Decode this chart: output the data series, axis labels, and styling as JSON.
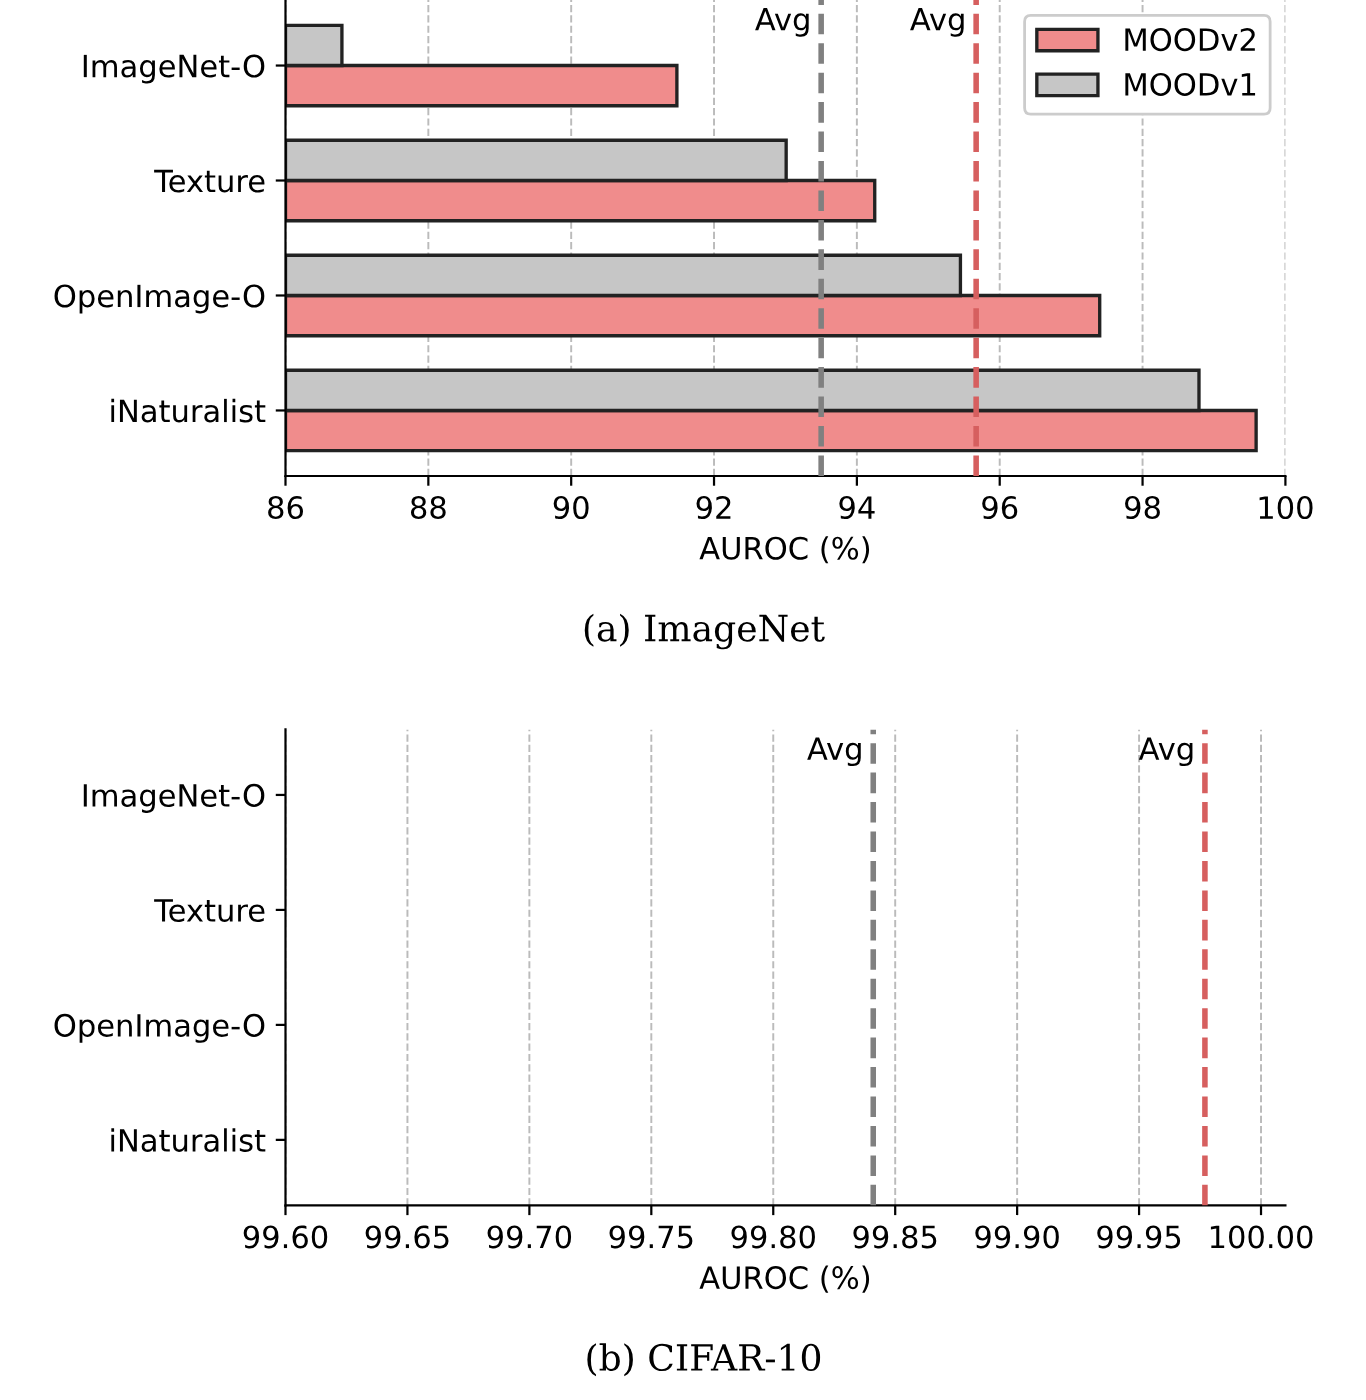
{
  "chart_data": [
    {
      "type": "bar",
      "orientation": "horizontal",
      "title": "(a) ImageNet",
      "xlabel": "AUROC (%)",
      "categories": [
        "ImageNet-O",
        "Texture",
        "OpenImage-O",
        "iNaturalist"
      ],
      "series": [
        {
          "name": "MOODv2",
          "color": "#f08c8c",
          "values": [
            91.48,
            94.25,
            97.4,
            99.59
          ]
        },
        {
          "name": "MOODv1",
          "color": "#c6c6c6",
          "values": [
            86.79,
            93.01,
            95.45,
            98.79
          ]
        }
      ],
      "xlim": [
        86,
        100
      ],
      "xticks": [
        86,
        88,
        90,
        92,
        94,
        96,
        98,
        100
      ],
      "ref_lines": [
        {
          "axis": "x",
          "value": 93.5,
          "label": "Avg",
          "color": "#808080",
          "line_style": "dashed"
        },
        {
          "axis": "x",
          "value": 95.67,
          "label": "Avg",
          "color": "#d65f5f",
          "line_style": "dashed"
        }
      ],
      "grid": "x",
      "legend": "top right"
    },
    {
      "type": "bar",
      "orientation": "horizontal",
      "title": "(b) CIFAR-10",
      "xlabel": "AUROC (%)",
      "categories": [
        "ImageNet-O",
        "Texture",
        "OpenImage-O",
        "iNaturalist"
      ],
      "xlim": [
        99.6,
        100.01
      ],
      "xticks": [
        {
          "value": 99.6,
          "label": "99.60"
        },
        {
          "value": 99.65,
          "label": "99.65"
        },
        {
          "value": 99.7,
          "label": "99.70"
        },
        {
          "value": 99.75,
          "label": "99.75"
        },
        {
          "value": 99.8,
          "label": "99.80"
        },
        {
          "value": 99.85,
          "label": "99.85"
        },
        {
          "value": 99.9,
          "label": "99.90"
        },
        {
          "value": 99.95,
          "label": "99.95"
        },
        {
          "value": 100.0,
          "label": "100.00"
        }
      ],
      "ref_lines": [
        {
          "axis": "x",
          "value": 99.841,
          "label": "Avg",
          "color": "#808080",
          "line_style": "dashed"
        },
        {
          "axis": "x",
          "value": 99.977,
          "label": "Avg",
          "color": "#d65f5f",
          "line_style": "dashed"
        }
      ],
      "grid": "x"
    }
  ]
}
